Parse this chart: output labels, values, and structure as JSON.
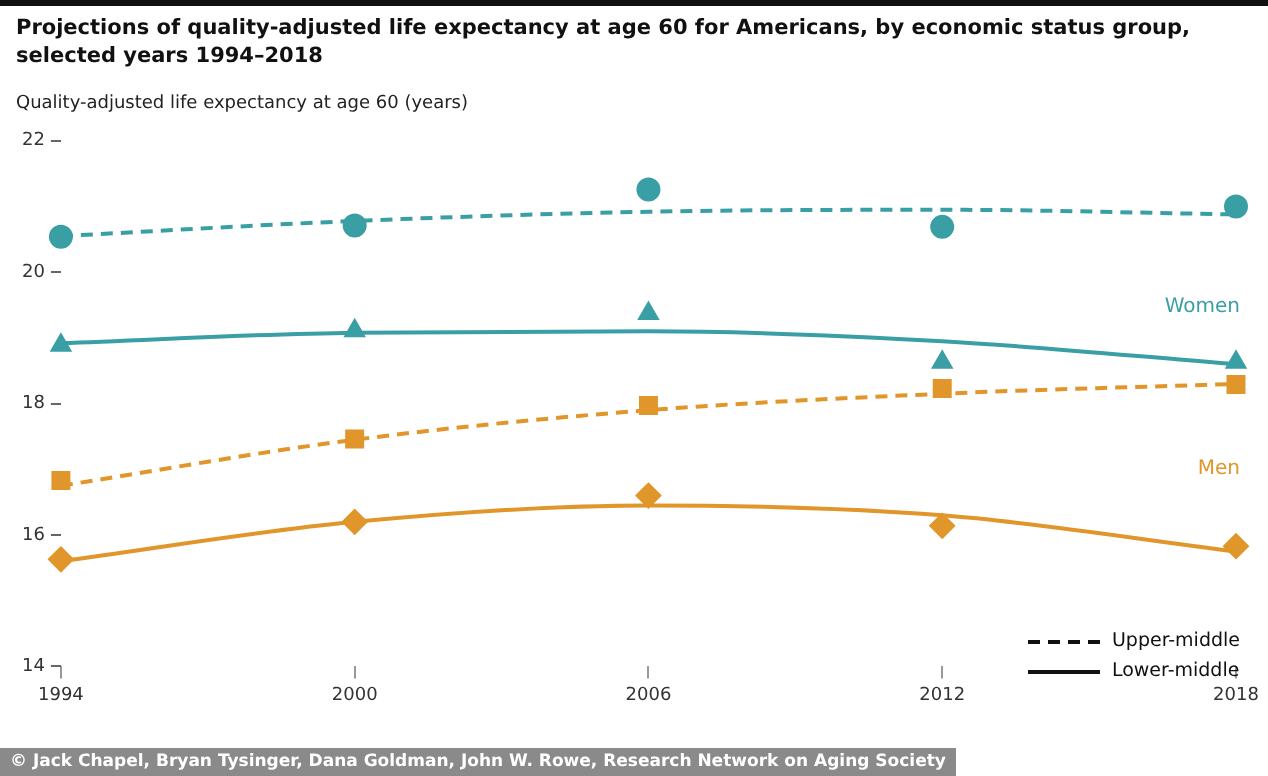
{
  "chart_data": {
    "type": "scatter",
    "title": "Projections of quality-adjusted life expectancy at age 60 for Americans, by economic status group, selected years 1994–2018",
    "ylabel": "Quality-adjusted life expectancy at age 60 (years)",
    "x": [
      1994,
      2000,
      2006,
      2012,
      2018
    ],
    "series": [
      {
        "type": "line",
        "color": "#3a9fa5",
        "line_style": "dashed",
        "marker": "none",
        "values": [
          20.55,
          20.78,
          20.92,
          20.95,
          20.88
        ]
      },
      {
        "type": "line",
        "color": "#3a9fa5",
        "line_style": "solid",
        "marker": "none",
        "values": [
          18.92,
          19.08,
          19.1,
          18.95,
          18.6
        ]
      },
      {
        "type": "line",
        "color": "#e0962a",
        "line_style": "dashed",
        "marker": "none",
        "values": [
          16.75,
          17.45,
          17.9,
          18.15,
          18.3
        ]
      },
      {
        "type": "line",
        "color": "#e0962a",
        "line_style": "solid",
        "marker": "none",
        "values": [
          15.6,
          16.2,
          16.45,
          16.3,
          15.75
        ]
      },
      {
        "color": "#3a9fa5",
        "marker": "circle",
        "values": [
          20.54,
          20.71,
          21.26,
          20.69,
          21.0
        ]
      },
      {
        "color": "#3a9fa5",
        "marker": "triangle",
        "values": [
          18.89,
          19.11,
          19.37,
          18.63,
          18.63
        ]
      },
      {
        "color": "#e0962a",
        "marker": "square",
        "values": [
          16.83,
          17.46,
          17.97,
          18.23,
          18.29
        ]
      },
      {
        "color": "#e0962a",
        "marker": "diamond",
        "values": [
          15.63,
          16.2,
          16.6,
          16.14,
          15.83
        ]
      }
    ],
    "xlim": [
      1994,
      2018
    ],
    "xticks": [
      1994,
      2000,
      2006,
      2012,
      2018
    ],
    "ylim": [
      14,
      22
    ],
    "yticks": [
      14,
      16,
      18,
      20,
      22
    ],
    "grid": false,
    "legend": false,
    "annotations": [
      "Women",
      "Men",
      "Upper-middle",
      "Lower-middle",
      "© Jack Chapel, Bryan Tysinger, Dana Goldman, John W. Rowe, Research Network on Aging Society"
    ]
  }
}
